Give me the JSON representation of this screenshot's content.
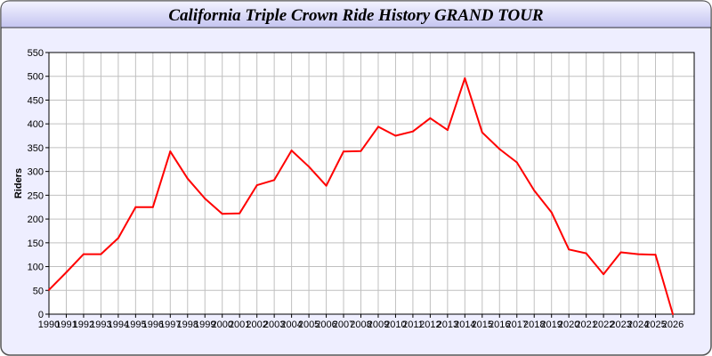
{
  "chart_data": {
    "type": "line",
    "title": "California Triple Crown Ride History GRAND TOUR",
    "xlabel": "",
    "ylabel": "Riders",
    "ylim": [
      0,
      550
    ],
    "yticks": [
      0,
      50,
      100,
      150,
      200,
      250,
      300,
      350,
      400,
      450,
      500,
      550
    ],
    "grid": true,
    "x": [
      1990,
      1991,
      1992,
      1993,
      1994,
      1995,
      1996,
      1997,
      1998,
      1999,
      2000,
      2001,
      2002,
      2003,
      2004,
      2005,
      2006,
      2007,
      2008,
      2009,
      2010,
      2011,
      2012,
      2013,
      2014,
      2015,
      2016,
      2017,
      2018,
      2019,
      2020,
      2021,
      2022,
      2023,
      2024,
      2025,
      2026
    ],
    "series": [
      {
        "color": "#ff0000",
        "values": [
          51,
          88,
          126,
          126,
          160,
          225,
          225,
          342,
          285,
          243,
          211,
          212,
          271,
          282,
          344,
          310,
          270,
          342,
          343,
          394,
          375,
          384,
          412,
          387,
          496,
          382,
          347,
          319,
          260,
          214,
          136,
          128,
          84,
          130,
          126,
          125,
          0
        ]
      }
    ]
  },
  "colors": {
    "background": "#eeeeff",
    "title_bar_top": "#ffffff",
    "title_bar_bottom": "#c8c8f4",
    "grid": "#c0c0c0"
  }
}
